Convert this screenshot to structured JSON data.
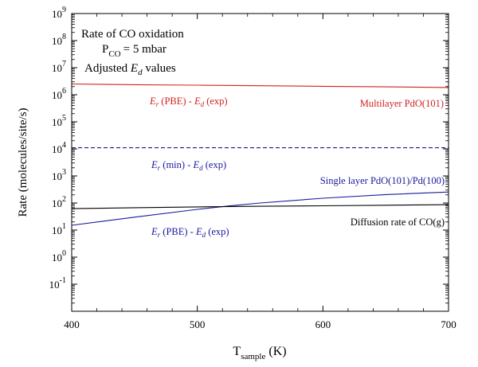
{
  "chart_data": {
    "type": "line",
    "title_lines": [
      "Rate of CO oxidation",
      "P",
      "CO",
      "= 5 mbar",
      "Adjusted ",
      "E",
      "d",
      " values"
    ],
    "xlabel": "T",
    "xlabel_sub": "sample",
    "xlabel_unit": " (K)",
    "ylabel": "Rate (molecules/site/s)",
    "xlim": [
      400,
      700
    ],
    "ylim_exp": [
      -2,
      9
    ],
    "y_scale": "log",
    "xticks": [
      "400",
      "500",
      "600",
      "700"
    ],
    "ytick_base": "10",
    "yticks_exp": [
      "-1",
      "0",
      "1",
      "2",
      "3",
      "4",
      "5",
      "6",
      "7",
      "8",
      "9"
    ],
    "series": [
      {
        "key": "multilayer",
        "name": "Multilayer PdO(101)",
        "color": "#d42020",
        "style": "solid",
        "x": [
          400,
          450,
          500,
          550,
          600,
          650,
          700
        ],
        "y": [
          2500000,
          2350000,
          2250000,
          2150000,
          2050000,
          1950000,
          1850000
        ]
      },
      {
        "key": "min",
        "color": "#1a1a9c",
        "style": "dashed",
        "x": [
          400,
          700
        ],
        "y": [
          11000,
          11000
        ]
      },
      {
        "key": "single",
        "name": "Single layer PdO(101)/Pd(100)",
        "color": "#1a1a9c",
        "style": "solid",
        "x": [
          400,
          450,
          500,
          525,
          550,
          600,
          650,
          700
        ],
        "y": [
          15,
          30,
          58,
          78,
          100,
          150,
          205,
          255
        ]
      },
      {
        "key": "diffusion",
        "name": "Diffusion rate of CO(g)",
        "color": "#000000",
        "style": "solid",
        "x": [
          400,
          450,
          500,
          550,
          600,
          650,
          700
        ],
        "y": [
          62,
          67,
          72,
          76,
          79,
          83,
          87
        ]
      }
    ],
    "annotations": {
      "pbe_multi": {
        "color": "#d42020",
        "parts": [
          "E",
          "r",
          " (PBE) - ",
          "E",
          "d",
          " (exp)"
        ]
      },
      "min": {
        "color": "#1a1a9c",
        "parts": [
          "E",
          "r",
          " (min) - ",
          "E",
          "d",
          " (exp)"
        ]
      },
      "pbe_single": {
        "color": "#1a1a9c",
        "parts": [
          "E",
          "r",
          " (PBE) - ",
          "E",
          "d",
          " (exp)"
        ]
      }
    }
  }
}
